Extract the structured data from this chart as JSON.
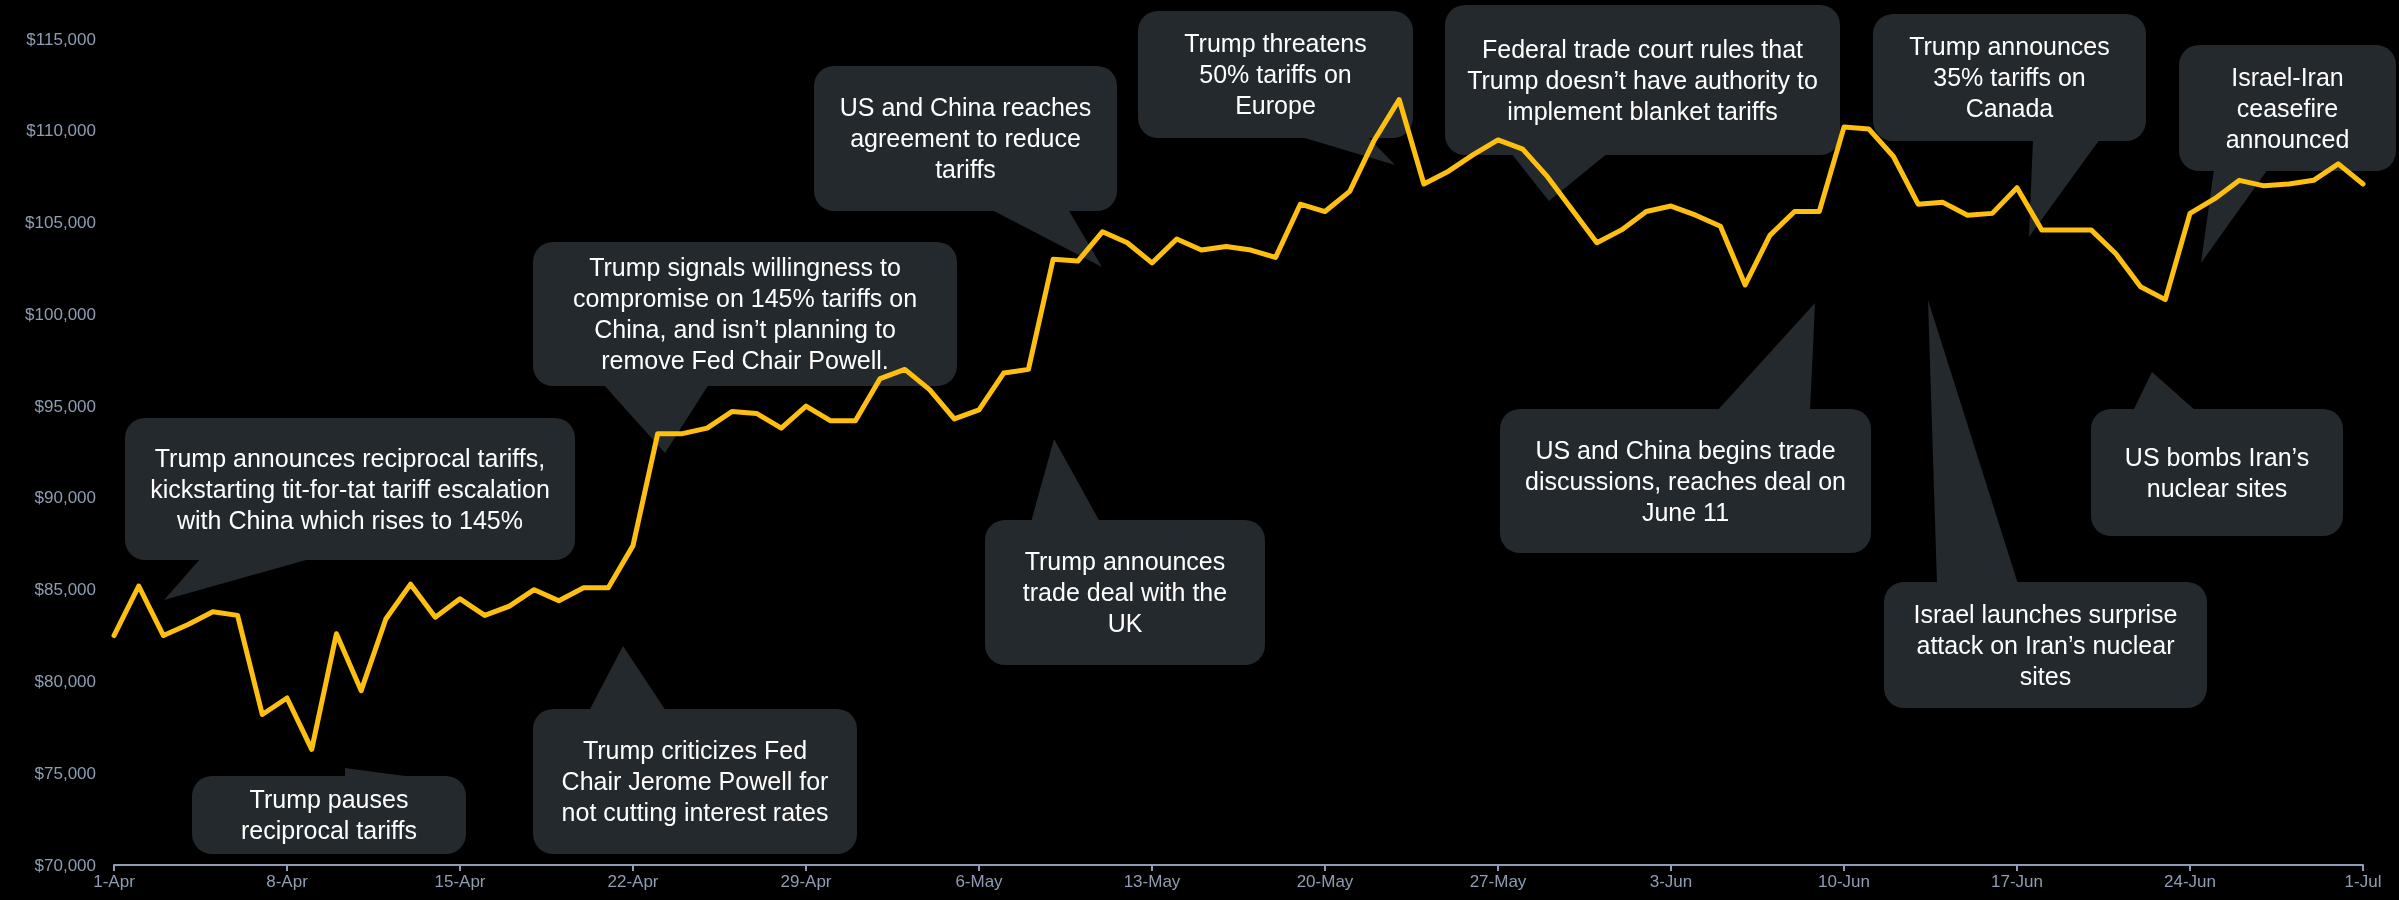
{
  "chart_data": {
    "type": "line",
    "categories": [
      "1-Apr",
      null,
      null,
      null,
      null,
      null,
      null,
      "8-Apr",
      null,
      null,
      null,
      null,
      null,
      null,
      "15-Apr",
      null,
      null,
      null,
      null,
      null,
      null,
      "22-Apr",
      null,
      null,
      null,
      null,
      null,
      null,
      "29-Apr",
      null,
      null,
      null,
      null,
      null,
      null,
      "6-May",
      null,
      null,
      null,
      null,
      null,
      null,
      "13-May",
      null,
      null,
      null,
      null,
      null,
      null,
      "20-May",
      null,
      null,
      null,
      null,
      null,
      null,
      "27-May",
      null,
      null,
      null,
      null,
      null,
      null,
      "3-Jun",
      null,
      null,
      null,
      null,
      null,
      null,
      "10-Jun",
      null,
      null,
      null,
      null,
      null,
      null,
      "17-Jun",
      null,
      null,
      null,
      null,
      null,
      null,
      "24-Jun",
      null,
      null,
      null,
      null,
      null,
      null,
      "1-Jul"
    ],
    "series": [
      {
        "color": "#ffbf0f",
        "values": [
          82500,
          85200,
          82500,
          83100,
          83800,
          83600,
          78200,
          79100,
          76300,
          82600,
          79500,
          83400,
          85300,
          83500,
          84500,
          83600,
          84100,
          85000,
          84400,
          85100,
          85100,
          87400,
          93500,
          93500,
          93800,
          94700,
          94600,
          93800,
          95000,
          94200,
          94200,
          96500,
          97000,
          95900,
          94300,
          94800,
          96800,
          97000,
          103000,
          102900,
          104500,
          103900,
          102800,
          104100,
          103500,
          103700,
          103500,
          103100,
          106000,
          105600,
          106700,
          109500,
          111700,
          107100,
          107800,
          108700,
          109500,
          109000,
          107500,
          105700,
          103900,
          104600,
          105600,
          105900,
          105400,
          104800,
          101600,
          104300,
          105600,
          105600,
          110200,
          110100,
          108600,
          106000,
          106100,
          105400,
          105500,
          106900,
          104600,
          104600,
          104600,
          103300,
          101500,
          100800,
          105500,
          106300,
          107300,
          107000,
          107100,
          107300,
          108200,
          107100
        ]
      }
    ],
    "ylim": [
      70000,
      115000
    ],
    "yticks": [
      {
        "value": 70000,
        "label": "$70,000"
      },
      {
        "value": 75000,
        "label": "$75,000"
      },
      {
        "value": 80000,
        "label": "$80,000"
      },
      {
        "value": 85000,
        "label": "$85,000"
      },
      {
        "value": 90000,
        "label": "$90,000"
      },
      {
        "value": 95000,
        "label": "$95,000"
      },
      {
        "value": 100000,
        "label": "$100,000"
      },
      {
        "value": 105000,
        "label": "$105,000"
      },
      {
        "value": 110000,
        "label": "$110,000"
      },
      {
        "value": 115000,
        "label": "$115,000"
      }
    ],
    "grid": false,
    "marker": "none",
    "line_style": "solid",
    "annotations": [
      "Trump announces reciprocal tariffs, kickstarting tit-for-tat tariff escalation with China which rises to 145%",
      "Trump pauses reciprocal tariffs",
      "Trump signals willingness to compromise on 145% tariffs on China, and isn’t planning to remove Fed Chair Powell.",
      "Trump criticizes Fed Chair Jerome Powell for not cutting interest rates",
      "US and China reaches agreement to reduce tariffs",
      "Trump announces trade deal with the UK",
      "Trump threatens 50% tariffs on Europe",
      "Federal trade court rules that Trump doesn’t have authority to implement blanket tariffs",
      "US and China begins trade discussions, reaches deal on June 11",
      "Trump announces 35% tariffs on Canada",
      "Israel-Iran ceasefire announced",
      "Israel launches surprise attack on Iran’s nuclear sites",
      "US bombs Iran’s nuclear sites"
    ]
  }
}
